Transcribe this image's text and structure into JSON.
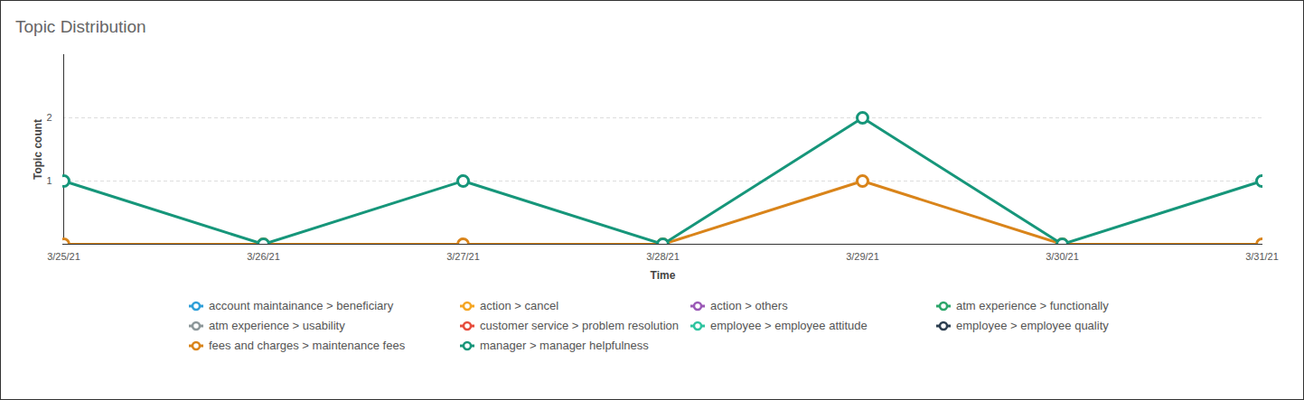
{
  "chart_data": {
    "type": "line",
    "title": "Topic Distribution",
    "x_label": "Time",
    "y_label": "Topic count",
    "x": [
      "3/25/21",
      "3/26/21",
      "3/27/21",
      "3/28/21",
      "3/29/21",
      "3/30/21",
      "3/31/21"
    ],
    "ylim": [
      0,
      3
    ],
    "yticks": [
      1,
      2
    ],
    "grid": true,
    "legend": "bottom",
    "marker": "circle",
    "series": [
      {
        "name": "account maintainance > beneficiary",
        "color": "#2e9fd8",
        "values": [
          null,
          null,
          null,
          null,
          null,
          null,
          null
        ]
      },
      {
        "name": "action > cancel",
        "color": "#f5a623",
        "values": [
          null,
          null,
          null,
          null,
          null,
          null,
          null
        ]
      },
      {
        "name": "action > others",
        "color": "#9b59b6",
        "values": [
          null,
          null,
          null,
          null,
          null,
          null,
          null
        ]
      },
      {
        "name": "atm experience > functionally",
        "color": "#2ca66a",
        "values": [
          null,
          null,
          null,
          null,
          null,
          null,
          null
        ]
      },
      {
        "name": "atm experience > usability",
        "color": "#8c9799",
        "values": [
          null,
          null,
          null,
          null,
          null,
          null,
          null
        ]
      },
      {
        "name": "customer service > problem resolution",
        "color": "#e74c3c",
        "values": [
          null,
          null,
          null,
          null,
          null,
          null,
          null
        ]
      },
      {
        "name": "employee > employee attitude",
        "color": "#2ec4a0",
        "values": [
          null,
          null,
          null,
          null,
          null,
          null,
          null
        ]
      },
      {
        "name": "employee > employee quality",
        "color": "#2c3e50",
        "values": [
          null,
          null,
          null,
          null,
          null,
          null,
          null
        ]
      },
      {
        "name": "fees and charges > maintenance fees",
        "color": "#d9841a",
        "values": [
          0,
          0,
          0,
          0,
          1,
          0,
          0
        ]
      },
      {
        "name": "manager > manager helpfulness",
        "color": "#16967a",
        "values": [
          1,
          0,
          1,
          0,
          2,
          0,
          1
        ]
      }
    ]
  }
}
